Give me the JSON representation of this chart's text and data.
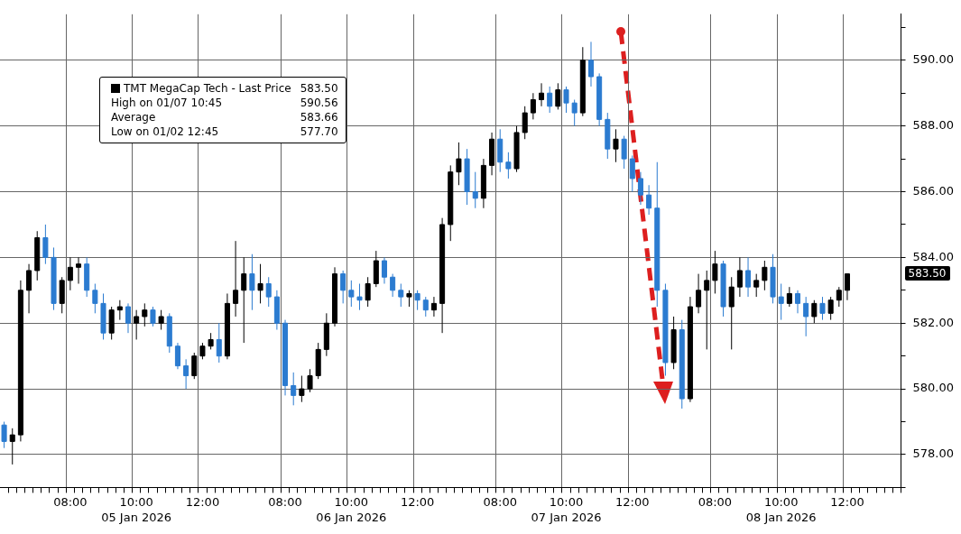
{
  "chart_data": {
    "type": "candlestick",
    "legend": "top left",
    "grid": true,
    "categories": [
      null,
      null,
      null,
      null,
      null,
      null,
      null,
      null,
      "08:00",
      null,
      null,
      null,
      null,
      null,
      null,
      null,
      "10:00",
      null,
      null,
      null,
      null,
      null,
      null,
      null,
      "12:00",
      null,
      null,
      null,
      null,
      null,
      null,
      null,
      null,
      null,
      "08:00",
      null,
      null,
      null,
      null,
      null,
      null,
      null,
      "10:00",
      null,
      null,
      null,
      null,
      null,
      null,
      null,
      "12:00",
      null,
      null,
      null,
      null,
      null,
      null,
      null,
      null,
      null,
      "08:00",
      null,
      null,
      null,
      null,
      null,
      null,
      null,
      "10:00",
      null,
      null,
      null,
      null,
      null,
      null,
      null,
      "12:00",
      null,
      null,
      null,
      null,
      null,
      null,
      null,
      null,
      null,
      "08:00",
      null,
      null,
      null,
      null,
      null,
      null,
      null,
      "10:00",
      null,
      null,
      null,
      null,
      null,
      null,
      null,
      "12:00",
      null,
      null,
      null,
      null,
      null,
      null
    ],
    "ylim": [
      577,
      591.4
    ],
    "yticks": [
      {
        "value": 577,
        "label": null
      },
      {
        "value": 578,
        "label": "578.00"
      },
      {
        "value": 579,
        "label": null
      },
      {
        "value": 580,
        "label": "580.00"
      },
      {
        "value": 581,
        "label": null
      },
      {
        "value": 582,
        "label": "582.00"
      },
      {
        "value": 583,
        "label": null
      },
      {
        "value": 584,
        "label": "584.00"
      },
      {
        "value": 585,
        "label": null
      },
      {
        "value": 586,
        "label": "586.00"
      },
      {
        "value": 587,
        "label": null
      },
      {
        "value": 588,
        "label": "588.00"
      },
      {
        "value": 589,
        "label": null
      },
      {
        "value": 590,
        "label": "590.00"
      },
      {
        "value": 591,
        "label": null
      }
    ],
    "series": [
      {
        "name": "TMT MegaCap Tech - Last Price",
        "color": "#000000",
        "colors": [
          "#2b7bd0",
          "#000000",
          "#000000",
          "#000000",
          "#000000",
          "#2b7bd0",
          "#2b7bd0",
          "#000000",
          "#000000",
          "#000000",
          "#2b7bd0",
          "#2b7bd0",
          "#2b7bd0",
          "#000000",
          "#000000",
          "#2b7bd0",
          "#000000",
          "#000000",
          "#2b7bd0",
          "#000000",
          "#2b7bd0",
          "#2b7bd0",
          "#2b7bd0",
          "#000000",
          "#000000",
          "#000000",
          "#2b7bd0",
          "#000000",
          "#000000",
          "#000000",
          "#2b7bd0",
          "#000000",
          "#2b7bd0",
          "#2b7bd0",
          "#2b7bd0",
          "#2b7bd0",
          "#000000",
          "#000000",
          "#000000",
          "#000000",
          "#000000",
          "#2b7bd0",
          "#2b7bd0",
          "#2b7bd0",
          "#000000",
          "#000000",
          "#2b7bd0",
          "#2b7bd0",
          "#2b7bd0",
          "#000000",
          "#2b7bd0",
          "#2b7bd0",
          "#000000",
          "#000000",
          "#000000",
          "#000000",
          "#2b7bd0",
          "#2b7bd0",
          "#000000",
          "#000000",
          "#2b7bd0",
          "#2b7bd0",
          "#000000",
          "#000000",
          "#000000",
          "#000000",
          "#2b7bd0",
          "#000000",
          "#2b7bd0",
          "#2b7bd0",
          "#000000",
          "#2b7bd0",
          "#2b7bd0",
          "#2b7bd0",
          "#000000",
          "#2b7bd0",
          "#2b7bd0",
          "#2b7bd0",
          "#2b7bd0",
          "#2b7bd0",
          "#2b7bd0",
          "#000000",
          "#2b7bd0",
          "#000000",
          "#000000",
          "#000000",
          "#000000",
          "#2b7bd0",
          "#000000",
          "#000000",
          "#2b7bd0",
          "#000000",
          "#000000",
          "#2b7bd0",
          "#2b7bd0",
          "#000000",
          "#2b7bd0",
          "#2b7bd0",
          "#000000",
          "#2b7bd0",
          "#000000",
          "#000000",
          "#000000",
          null,
          null,
          null,
          null,
          null,
          null
        ],
        "ohlc": [
          [
            578.9,
            579.0,
            578.2,
            578.4
          ],
          [
            578.4,
            578.8,
            577.7,
            578.6
          ],
          [
            578.6,
            583.3,
            578.4,
            583.0
          ],
          [
            583.0,
            583.8,
            582.3,
            583.6
          ],
          [
            583.6,
            584.8,
            583.3,
            584.6
          ],
          [
            584.6,
            585.0,
            583.8,
            584.0
          ],
          [
            584.0,
            584.3,
            582.4,
            582.6
          ],
          [
            582.6,
            583.4,
            582.3,
            583.3
          ],
          [
            583.3,
            584.0,
            583.0,
            583.7
          ],
          [
            583.7,
            584.0,
            583.2,
            583.8
          ],
          [
            583.8,
            584.0,
            582.8,
            583.0
          ],
          [
            583.0,
            583.2,
            582.3,
            582.6
          ],
          [
            582.6,
            582.9,
            581.5,
            581.7
          ],
          [
            581.7,
            582.5,
            581.5,
            582.4
          ],
          [
            582.4,
            582.7,
            582.1,
            582.5
          ],
          [
            582.5,
            582.6,
            581.7,
            582.0
          ],
          [
            582.0,
            582.4,
            581.5,
            582.2
          ],
          [
            582.2,
            582.6,
            581.9,
            582.4
          ],
          [
            582.4,
            582.5,
            581.9,
            582.0
          ],
          [
            582.0,
            582.4,
            581.8,
            582.2
          ],
          [
            582.2,
            582.3,
            581.1,
            581.3
          ],
          [
            581.3,
            581.4,
            580.6,
            580.7
          ],
          [
            580.7,
            580.9,
            580.0,
            580.4
          ],
          [
            580.4,
            581.1,
            580.3,
            581.0
          ],
          [
            581.0,
            581.4,
            580.9,
            581.3
          ],
          [
            581.3,
            581.7,
            581.2,
            581.5
          ],
          [
            581.5,
            582.0,
            580.8,
            581.0
          ],
          [
            581.0,
            582.9,
            580.9,
            582.6
          ],
          [
            582.6,
            584.5,
            582.2,
            583.0
          ],
          [
            583.0,
            584.0,
            581.4,
            583.5
          ],
          [
            583.5,
            584.1,
            582.4,
            583.0
          ],
          [
            583.0,
            583.8,
            582.6,
            583.2
          ],
          [
            583.2,
            583.4,
            582.5,
            582.8
          ],
          [
            582.8,
            583.0,
            581.8,
            582.0
          ],
          [
            582.0,
            582.1,
            579.8,
            580.1
          ],
          [
            580.1,
            580.5,
            579.5,
            579.8
          ],
          [
            579.8,
            580.4,
            579.6,
            580.0
          ],
          [
            580.0,
            580.6,
            579.9,
            580.4
          ],
          [
            580.4,
            581.4,
            580.3,
            581.2
          ],
          [
            581.2,
            582.3,
            581.0,
            582.0
          ],
          [
            582.0,
            583.7,
            581.9,
            583.5
          ],
          [
            583.5,
            583.6,
            582.6,
            583.0
          ],
          [
            583.0,
            583.3,
            582.5,
            582.8
          ],
          [
            582.8,
            583.2,
            582.4,
            582.7
          ],
          [
            582.7,
            583.4,
            582.5,
            583.2
          ],
          [
            583.2,
            584.2,
            583.1,
            583.9
          ],
          [
            583.9,
            584.0,
            583.2,
            583.4
          ],
          [
            583.4,
            583.5,
            582.8,
            583.0
          ],
          [
            583.0,
            583.2,
            582.5,
            582.8
          ],
          [
            582.8,
            583.0,
            582.5,
            582.9
          ],
          [
            582.9,
            583.0,
            582.4,
            582.7
          ],
          [
            582.7,
            582.8,
            582.2,
            582.4
          ],
          [
            582.4,
            582.8,
            582.2,
            582.6
          ],
          [
            582.6,
            585.2,
            581.7,
            585.0
          ],
          [
            585.0,
            586.8,
            584.5,
            586.6
          ],
          [
            586.6,
            587.5,
            586.2,
            587.0
          ],
          [
            587.0,
            587.3,
            585.6,
            586.0
          ],
          [
            586.0,
            586.6,
            585.5,
            585.8
          ],
          [
            585.8,
            587.0,
            585.5,
            586.8
          ],
          [
            586.8,
            587.8,
            586.5,
            587.6
          ],
          [
            587.6,
            587.9,
            586.6,
            586.9
          ],
          [
            586.9,
            587.2,
            586.4,
            586.7
          ],
          [
            586.7,
            588.0,
            586.6,
            587.8
          ],
          [
            587.8,
            588.6,
            587.6,
            588.4
          ],
          [
            588.4,
            589.0,
            588.2,
            588.8
          ],
          [
            588.8,
            589.3,
            588.6,
            589.0
          ],
          [
            589.0,
            589.2,
            588.4,
            588.6
          ],
          [
            588.6,
            589.3,
            588.5,
            589.1
          ],
          [
            589.1,
            589.2,
            588.4,
            588.7
          ],
          [
            588.7,
            588.8,
            588.0,
            588.4
          ],
          [
            588.4,
            590.4,
            588.3,
            590.0
          ],
          [
            590.0,
            590.56,
            589.2,
            589.5
          ],
          [
            589.5,
            589.6,
            588.0,
            588.2
          ],
          [
            588.2,
            588.4,
            587.0,
            587.3
          ],
          [
            587.3,
            587.9,
            586.9,
            587.6
          ],
          [
            587.6,
            587.7,
            586.7,
            587.0
          ],
          [
            587.0,
            587.1,
            586.0,
            586.4
          ],
          [
            586.4,
            586.6,
            585.6,
            585.9
          ],
          [
            585.9,
            586.2,
            585.3,
            585.5
          ],
          [
            585.5,
            586.9,
            582.5,
            583.0
          ],
          [
            583.0,
            583.2,
            580.4,
            580.8
          ],
          [
            580.8,
            582.2,
            580.6,
            581.8
          ],
          [
            581.8,
            582.1,
            579.4,
            579.7
          ],
          [
            579.7,
            582.8,
            579.6,
            582.5
          ],
          [
            582.5,
            583.5,
            582.3,
            583.0
          ],
          [
            583.0,
            583.6,
            581.2,
            583.3
          ],
          [
            583.3,
            584.2,
            582.9,
            583.8
          ],
          [
            583.8,
            583.9,
            582.2,
            582.5
          ],
          [
            582.5,
            583.4,
            581.2,
            583.1
          ],
          [
            583.1,
            584.0,
            582.8,
            583.6
          ],
          [
            583.6,
            584.0,
            582.8,
            583.1
          ],
          [
            583.1,
            583.5,
            582.8,
            583.3
          ],
          [
            583.3,
            583.9,
            583.0,
            583.7
          ],
          [
            583.7,
            584.1,
            582.6,
            582.8
          ],
          [
            582.8,
            583.2,
            582.1,
            582.6
          ],
          [
            582.6,
            583.1,
            582.5,
            582.9
          ],
          [
            582.9,
            583.0,
            582.3,
            582.6
          ],
          [
            582.6,
            582.8,
            581.6,
            582.2
          ],
          [
            582.2,
            582.7,
            582.0,
            582.6
          ],
          [
            582.6,
            582.8,
            582.1,
            582.3
          ],
          [
            582.3,
            582.8,
            582.1,
            582.7
          ],
          [
            582.7,
            583.1,
            582.5,
            583.0
          ],
          [
            583.0,
            583.5,
            582.7,
            583.5
          ],
          null,
          null,
          null,
          null,
          null,
          null
        ]
      }
    ],
    "annotations": [
      "583.50",
      "High on 01/07 10:45",
      "590.56",
      "Average",
      "583.66",
      "Low on 01/02 12:45",
      "577.70",
      "05 Jan 2026",
      "06 Jan 2026",
      "07 Jan 2026",
      "08 Jan 2026"
    ]
  }
}
